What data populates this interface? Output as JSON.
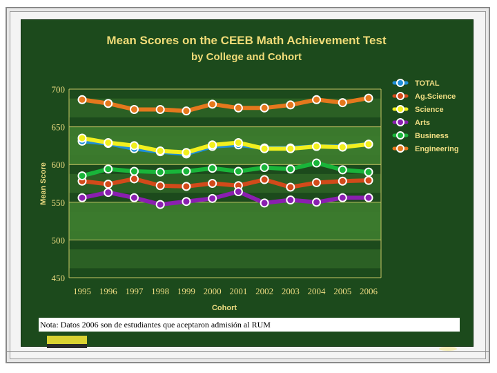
{
  "note": "Nota:  Datos 2006 son de estudiantes que aceptaron admisión al RUM",
  "colors": {
    "board": "#1c4a1c",
    "band": "#3e7d2f",
    "text": "#eddc82",
    "TOTAL": "#1f8fd8",
    "Ag.Science": "#d24a1a",
    "Science": "#f2ef1e",
    "Arts": "#8a1fb0",
    "Business": "#19b53a",
    "Engineering": "#e5781d"
  },
  "chart_data": {
    "type": "line",
    "title": "Mean Scores on the CEEB Math Achievement Test",
    "subtitle": "by College and Cohort",
    "xlabel": "Cohort",
    "ylabel": "Mean Score",
    "ylim": [
      450,
      700
    ],
    "yticks": [
      "700",
      "650",
      "600",
      "550",
      "500",
      "450"
    ],
    "categories": [
      "1995",
      "1996",
      "1997",
      "1998",
      "1999",
      "2000",
      "2001",
      "2002",
      "2003",
      "2004",
      "2005",
      "2006"
    ],
    "legend_position": "right",
    "grid": true,
    "series": [
      {
        "name": "TOTAL",
        "values": [
          631,
          628,
          621,
          617,
          614,
          624,
          626,
          622,
          622,
          624,
          624,
          627
        ]
      },
      {
        "name": "Ag.Science",
        "values": [
          578,
          574,
          581,
          572,
          571,
          575,
          572,
          580,
          570,
          576,
          578,
          579
        ]
      },
      {
        "name": "Science",
        "values": [
          635,
          629,
          625,
          618,
          616,
          626,
          629,
          621,
          621,
          624,
          623,
          627
        ]
      },
      {
        "name": "Arts",
        "values": [
          556,
          563,
          556,
          547,
          551,
          555,
          564,
          549,
          553,
          550,
          556,
          556
        ]
      },
      {
        "name": "Business",
        "values": [
          585,
          594,
          591,
          590,
          591,
          595,
          591,
          596,
          594,
          602,
          593,
          590
        ]
      },
      {
        "name": "Engineering",
        "values": [
          686,
          681,
          673,
          673,
          671,
          680,
          675,
          675,
          679,
          686,
          682,
          688
        ]
      }
    ]
  }
}
